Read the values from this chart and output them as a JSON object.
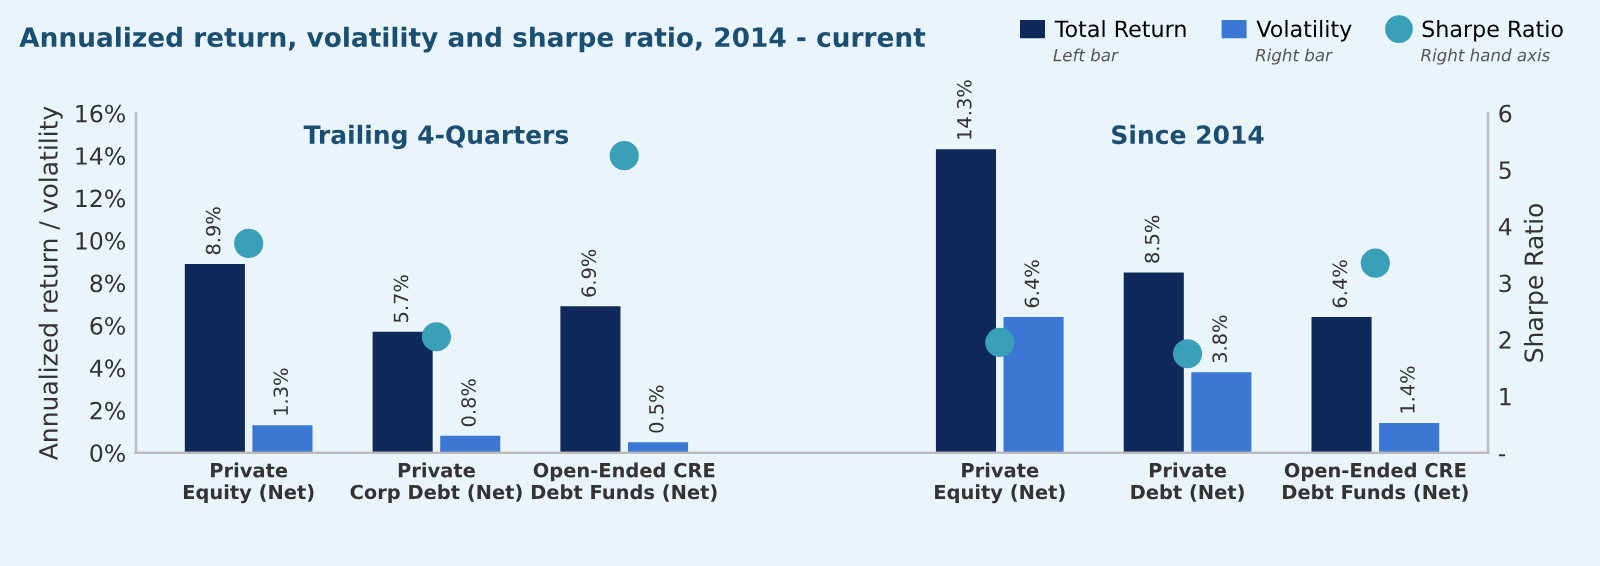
{
  "chart_data": {
    "type": "bar",
    "title": "Annualized return, volatility and sharpe ratio, 2014 - current",
    "categories": [
      "Private\nEquity (Net)",
      "Private\nCorp Debt (Net)",
      "Open-Ended CRE\nDebt Funds (Net)",
      null,
      "Private\nEquity (Net)",
      "Private\nDebt (Net)",
      "Open-Ended CRE\nDebt Funds (Net)"
    ],
    "series": [
      {
        "name": "Total Return",
        "color": "#0f2a5a",
        "values": [
          8.9,
          5.7,
          6.9,
          null,
          14.3,
          8.5,
          6.4
        ],
        "value_labels": [
          "8.9%",
          "5.7%",
          "6.9%",
          null,
          "14.3%",
          "8.5%",
          "6.4%"
        ]
      },
      {
        "name": "Volatility",
        "color": "#3a78d4",
        "values": [
          1.3,
          0.8,
          0.5,
          null,
          6.4,
          3.8,
          1.4
        ],
        "value_labels": [
          "1.3%",
          "0.8%",
          "0.5%",
          null,
          "6.4%",
          "3.8%",
          "1.4%"
        ]
      },
      {
        "name": "Sharpe Ratio",
        "type": "scatter",
        "axis": "y2",
        "color": "#3aa0b8",
        "values": [
          3.7,
          2.05,
          5.25,
          null,
          1.95,
          1.75,
          3.35
        ]
      }
    ],
    "ylabel": "Annualized return / volatility",
    "y2label": "Sharpe Ratio",
    "ylim": [
      0,
      16
    ],
    "yticks": [
      {
        "value": 0,
        "label": "0%"
      },
      {
        "value": 2,
        "label": "2%"
      },
      {
        "value": 4,
        "label": "4%"
      },
      {
        "value": 6,
        "label": "6%"
      },
      {
        "value": 8,
        "label": "8%"
      },
      {
        "value": 10,
        "label": "10%"
      },
      {
        "value": 12,
        "label": "12%"
      },
      {
        "value": 14,
        "label": "14%"
      },
      {
        "value": 16,
        "label": "16%"
      }
    ],
    "y2lim": [
      0,
      6
    ],
    "y2ticks": [
      {
        "value": 0,
        "label": "-"
      },
      1,
      2,
      3,
      4,
      5,
      6
    ],
    "marker": "circle",
    "legend": "top right",
    "grid": false,
    "annotations": [
      "Trailing 4-Quarters",
      "Since 2014",
      "Left bar",
      "Right bar",
      "Right hand axis"
    ]
  }
}
